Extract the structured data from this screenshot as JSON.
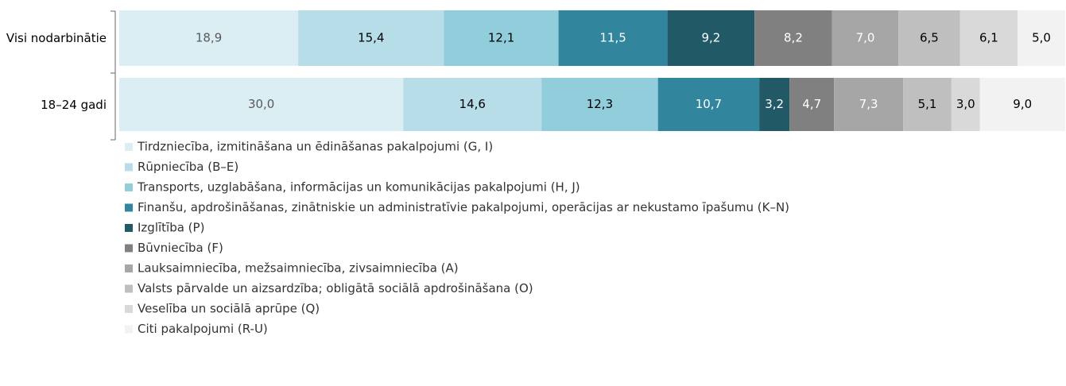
{
  "chart_data": {
    "type": "stacked-bar-horizontal",
    "categories": [
      "Visi nodarbinātie",
      "18–24 gadi"
    ],
    "xlim": [
      0,
      100
    ],
    "series": [
      {
        "name": "Tirdzniecība, izmitināšana un ēdināšanas pakalpojumi (G, I)",
        "color": "#daeef3",
        "values": [
          18.9,
          30.0
        ],
        "value_labels": [
          "18,9",
          "30,0"
        ]
      },
      {
        "name": "Rūpniecība (B–E)",
        "color": "#b7dde8",
        "values": [
          15.4,
          14.6
        ],
        "value_labels": [
          "15,4",
          "14,6"
        ]
      },
      {
        "name": "Transports, uzglabāšana, informācijas un komunikācijas pakalpojumi (H, J)",
        "color": "#92cddc",
        "values": [
          12.1,
          12.3
        ],
        "value_labels": [
          "12,1",
          "12,3"
        ]
      },
      {
        "name": "Finanšu, apdrošināšanas, zinātniskie un administratīvie pakalpojumi, operācijas ar nekustamo īpašumu (K–N)",
        "color": "#31859c",
        "values": [
          11.5,
          10.7
        ],
        "value_labels": [
          "11,5",
          "10,7"
        ]
      },
      {
        "name": "Izglītība (P)",
        "color": "#215967",
        "values": [
          9.2,
          3.2
        ],
        "value_labels": [
          "9,2",
          "3,2"
        ]
      },
      {
        "name": "Būvniecība (F)",
        "color": "#808080",
        "values": [
          8.2,
          4.7
        ],
        "value_labels": [
          "8,2",
          "4,7"
        ]
      },
      {
        "name": "Lauksaimniecība, mežsaimniecība, zivsaimniecība (A)",
        "color": "#a6a6a6",
        "values": [
          7.0,
          7.3
        ],
        "value_labels": [
          "7,0",
          "7,3"
        ]
      },
      {
        "name": "Valsts pārvalde un aizsardzība; obligātā sociālā apdrošināšana (O)",
        "color": "#bfbfbf",
        "values": [
          6.5,
          5.1
        ],
        "value_labels": [
          "6,5",
          "5,1"
        ]
      },
      {
        "name": "Veselība un sociālā aprūpe (Q)",
        "color": "#d9d9d9",
        "values": [
          6.1,
          3.0
        ],
        "value_labels": [
          "6,1",
          "3,0"
        ]
      },
      {
        "name": "Citi pakalpojumi (R-U)",
        "color": "#f2f2f2",
        "values": [
          5.0,
          9.0
        ],
        "value_labels": [
          "5,0",
          "9,0"
        ]
      }
    ]
  }
}
